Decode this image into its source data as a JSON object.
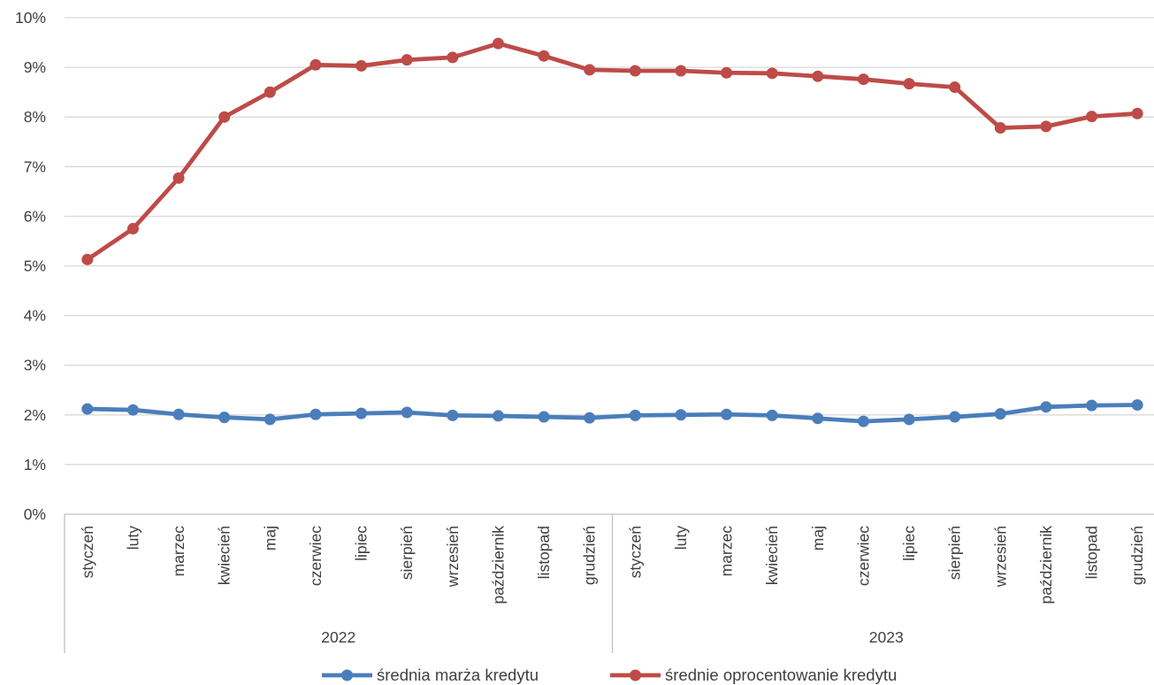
{
  "chart_data": {
    "type": "line",
    "title": "",
    "xlabel": "",
    "ylabel": "",
    "ylim": [
      0,
      10
    ],
    "y_ticks": [
      0,
      1,
      2,
      3,
      4,
      5,
      6,
      7,
      8,
      9,
      10
    ],
    "y_tick_labels": [
      "0%",
      "1%",
      "2%",
      "3%",
      "4%",
      "5%",
      "6%",
      "7%",
      "8%",
      "9%",
      "10%"
    ],
    "grid": true,
    "legend_position": "bottom",
    "groups": [
      {
        "label": "2022",
        "count": 12
      },
      {
        "label": "2023",
        "count": 12
      }
    ],
    "categories": [
      "styczeń",
      "luty",
      "marzec",
      "kwiecień",
      "maj",
      "czerwiec",
      "lipiec",
      "sierpień",
      "wrzesień",
      "październik",
      "listopad",
      "grudzień",
      "styczeń",
      "luty",
      "marzec",
      "kwiecień",
      "maj",
      "czerwiec",
      "lipiec",
      "sierpień",
      "wrzesień",
      "październik",
      "listopad",
      "grudzień"
    ],
    "series": [
      {
        "name": "średnia marża kredytu",
        "color": "#4A7EBB",
        "values": [
          2.12,
          2.1,
          2.01,
          1.95,
          1.91,
          2.01,
          2.03,
          2.05,
          1.99,
          1.98,
          1.96,
          1.94,
          1.99,
          2.0,
          2.01,
          1.99,
          1.93,
          1.87,
          1.91,
          1.96,
          2.02,
          2.16,
          2.19,
          2.2
        ]
      },
      {
        "name": "średnie oprocentowanie kredytu",
        "color": "#BE4B48",
        "values": [
          5.13,
          5.75,
          6.77,
          8.0,
          8.5,
          9.05,
          9.03,
          9.15,
          9.2,
          9.48,
          9.23,
          8.95,
          8.93,
          8.93,
          8.89,
          8.88,
          8.82,
          8.76,
          8.67,
          8.6,
          7.78,
          7.81,
          8.01,
          8.07
        ]
      }
    ]
  }
}
